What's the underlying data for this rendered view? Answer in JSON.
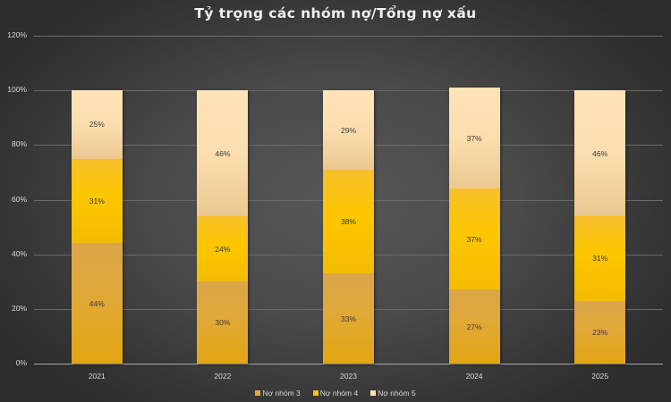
{
  "chart_data": {
    "type": "bar",
    "stacked": true,
    "percent_stacked": true,
    "title": "Tỷ trọng các nhóm nợ/Tổng nợ xấu",
    "xlabel": "",
    "ylabel": "",
    "ylim": [
      0,
      120
    ],
    "yticks": [
      "0%",
      "20%",
      "40%",
      "60%",
      "80%",
      "100%",
      "120%"
    ],
    "grid": true,
    "legend_position": "bottom",
    "categories": [
      "2021",
      "2022",
      "2023",
      "2024",
      "2025"
    ],
    "series": [
      {
        "name": "Nợ nhóm 3",
        "color": "#e0a932",
        "values": [
          44,
          30,
          33,
          27,
          23
        ],
        "labels": [
          "44%",
          "30%",
          "33%",
          "27%",
          "23%"
        ]
      },
      {
        "name": "Nợ nhóm 4",
        "color": "#fcc400",
        "values": [
          31,
          24,
          38,
          37,
          31
        ],
        "labels": [
          "31%",
          "24%",
          "38%",
          "37%",
          "31%"
        ]
      },
      {
        "name": "Nợ nhóm 5",
        "color": "#fddfb0",
        "values": [
          25,
          46,
          29,
          37,
          46
        ],
        "labels": [
          "25%",
          "46%",
          "29%",
          "37%",
          "46%"
        ]
      }
    ]
  },
  "colors": {
    "background_center": "#575757",
    "background_edge": "#2c2c2c",
    "text": "#d8d8d8",
    "title": "#f0f0f0"
  }
}
